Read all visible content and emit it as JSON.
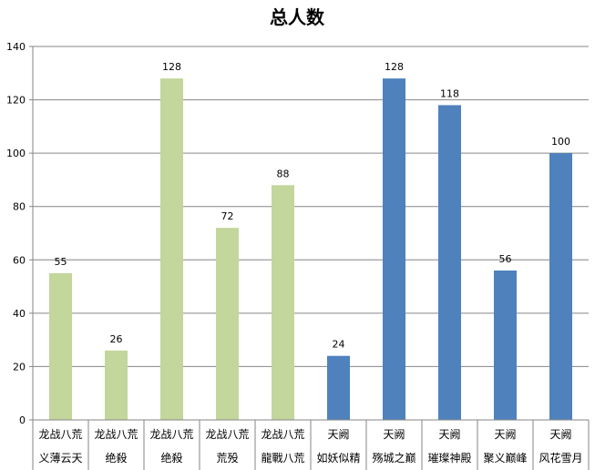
{
  "chart_data": {
    "type": "bar",
    "title": "总人数",
    "xlabel": "",
    "ylabel": "",
    "ylim": [
      0,
      140
    ],
    "yticks": [
      0,
      20,
      40,
      60,
      80,
      100,
      120,
      140
    ],
    "grid": true,
    "categories": [
      {
        "group": "龙战八荒",
        "name": "义薄云天"
      },
      {
        "group": "龙战八荒",
        "name": "绝殺"
      },
      {
        "group": "龙战八荒",
        "name": "绝殺"
      },
      {
        "group": "龙战八荒",
        "name": "荒殁"
      },
      {
        "group": "龙战八荒",
        "name": "龍戰八荒"
      },
      {
        "group": "天阙",
        "name": "如妖似精"
      },
      {
        "group": "天阙",
        "name": "殇城之巅"
      },
      {
        "group": "天阙",
        "name": "璀璨神殿"
      },
      {
        "group": "天阙",
        "name": "聚义巅峰"
      },
      {
        "group": "天阙",
        "name": "风花雪月"
      }
    ],
    "values": [
      55,
      26,
      128,
      72,
      88,
      24,
      128,
      118,
      56,
      100
    ],
    "colors": {
      "龙战八荒": "#c3d69b",
      "天阙": "#4f81bd"
    }
  }
}
